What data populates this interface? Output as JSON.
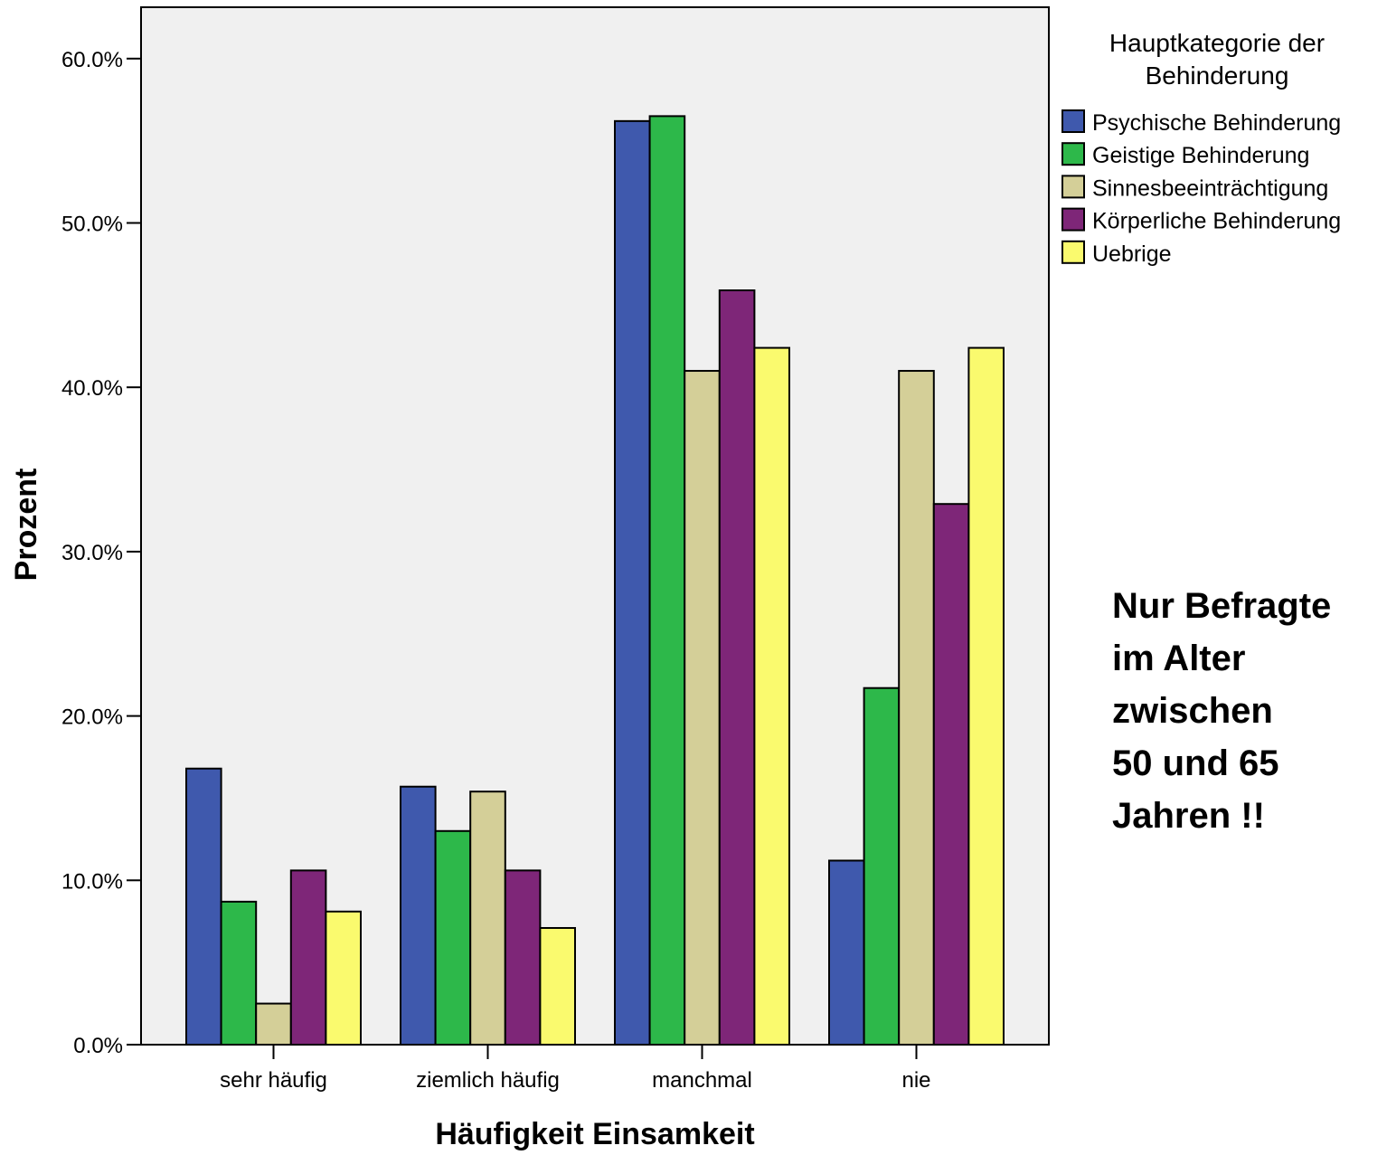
{
  "chart_data": {
    "type": "bar",
    "categories": [
      "sehr häufig",
      "ziemlich häufig",
      "manchmal",
      "nie"
    ],
    "series": [
      {
        "name": "Psychische Behinderung",
        "color": "#3f59ad",
        "values": [
          16.8,
          15.7,
          56.2,
          11.2
        ]
      },
      {
        "name": "Geistige Behinderung",
        "color": "#2db84a",
        "values": [
          8.7,
          13.0,
          56.5,
          21.7
        ]
      },
      {
        "name": "Sinnesbeeinträchtigung",
        "color": "#d4cf98",
        "values": [
          2.5,
          15.4,
          41.0,
          41.0
        ]
      },
      {
        "name": "Körperliche Behinderung",
        "color": "#7e2678",
        "values": [
          10.6,
          10.6,
          45.9,
          32.9
        ]
      },
      {
        "name": "Uebrige",
        "color": "#fafa6e",
        "values": [
          8.1,
          7.1,
          42.4,
          42.4
        ]
      }
    ],
    "xlabel": "Häufigkeit Einsamkeit",
    "ylabel": "Prozent",
    "ylim": [
      0,
      60
    ],
    "yticks": [
      0,
      10,
      20,
      30,
      40,
      50,
      60
    ],
    "ytick_labels": [
      "0.0%",
      "10.0%",
      "20.0%",
      "30.0%",
      "40.0%",
      "50.0%",
      "60.0%"
    ],
    "legend_title": [
      "Hauptkategorie der",
      "Behinderung"
    ],
    "legend_position": "top-right",
    "grid": false,
    "plot_background": "#f0f0f0"
  },
  "annotation": {
    "lines": [
      "Nur Befragte",
      "im Alter",
      "zwischen",
      "50 und 65",
      "Jahren !!"
    ]
  }
}
